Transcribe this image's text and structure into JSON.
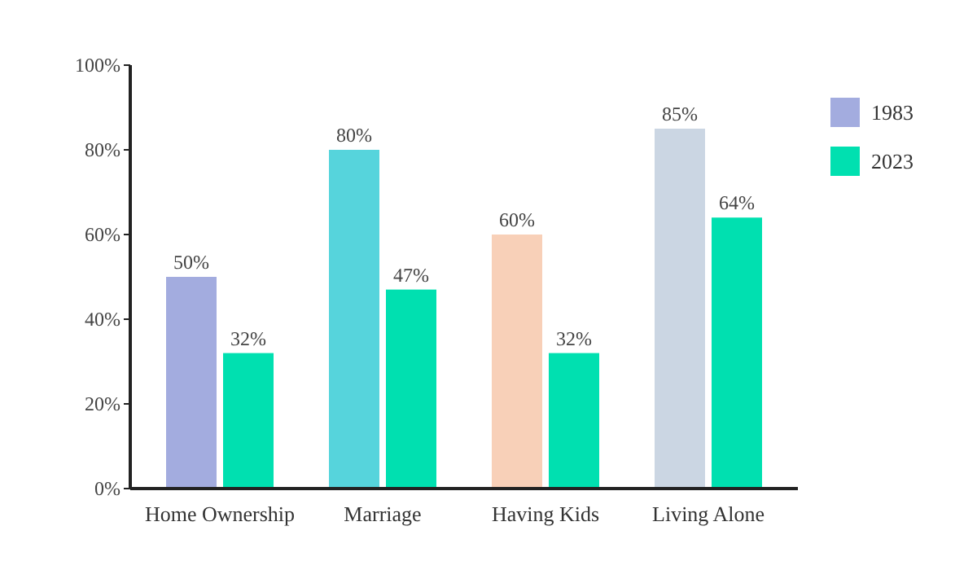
{
  "chart_data": {
    "type": "bar",
    "categories": [
      "Home Ownership",
      "Marriage",
      "Having Kids",
      "Living Alone"
    ],
    "series": [
      {
        "name": "1983",
        "color": "#a3acdf",
        "colors": [
          "#a3acdf",
          "#56d4dc",
          "#f8d0b8",
          "#cbd6e3"
        ],
        "values": [
          50,
          80,
          60,
          85
        ]
      },
      {
        "name": "2023",
        "color": "#00e0b0",
        "values": [
          32,
          47,
          32,
          64
        ]
      }
    ],
    "ylim": [
      0,
      100
    ],
    "yticks": [
      {
        "value": 0,
        "label": "0%"
      },
      {
        "value": 20,
        "label": "20%"
      },
      {
        "value": 40,
        "label": "40%"
      },
      {
        "value": 60,
        "label": "60%"
      },
      {
        "value": 80,
        "label": "80%"
      },
      {
        "value": 100,
        "label": "100%"
      }
    ],
    "value_labels": [
      [
        "50%",
        "80%",
        "60%",
        "85%"
      ],
      [
        "32%",
        "47%",
        "32%",
        "64%"
      ]
    ],
    "legend": "right"
  }
}
